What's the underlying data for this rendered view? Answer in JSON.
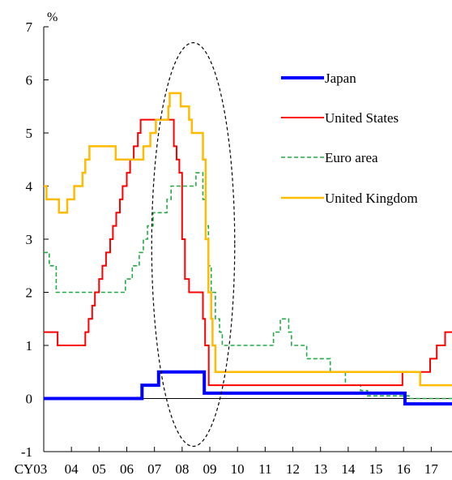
{
  "chart_data": {
    "type": "line",
    "y_unit_label": "%",
    "ylim": [
      -1,
      7
    ],
    "y_ticks": [
      -1,
      0,
      1,
      2,
      3,
      4,
      5,
      6,
      7
    ],
    "xlim": [
      2003.0,
      2017.75
    ],
    "x_ticks": [
      {
        "value": 2003,
        "label": "CY03"
      },
      {
        "value": 2004,
        "label": "04"
      },
      {
        "value": 2005,
        "label": "05"
      },
      {
        "value": 2006,
        "label": "06"
      },
      {
        "value": 2007,
        "label": "07"
      },
      {
        "value": 2008,
        "label": "08"
      },
      {
        "value": 2009,
        "label": "09"
      },
      {
        "value": 2010,
        "label": "10"
      },
      {
        "value": 2011,
        "label": "11"
      },
      {
        "value": 2012,
        "label": "12"
      },
      {
        "value": 2013,
        "label": "13"
      },
      {
        "value": 2014,
        "label": "14"
      },
      {
        "value": 2015,
        "label": "15"
      },
      {
        "value": 2016,
        "label": "16"
      },
      {
        "value": 2017,
        "label": "17"
      }
    ],
    "grid": false,
    "legend_position": "upper-right",
    "highlight_ellipse": {
      "x_center": 2008.4,
      "y_center": 2.9,
      "x_radius": 1.5,
      "y_radius": 3.8
    },
    "series": [
      {
        "name": "Japan",
        "color": "#0000ff",
        "style": "solid",
        "width": 4,
        "step": true,
        "points": [
          [
            2003.0,
            0.0
          ],
          [
            2006.55,
            0.25
          ],
          [
            2007.15,
            0.5
          ],
          [
            2008.8,
            0.1
          ],
          [
            2016.05,
            -0.1
          ],
          [
            2017.75,
            -0.1
          ]
        ]
      },
      {
        "name": "United States",
        "color": "#ff0000",
        "style": "solid",
        "width": 2,
        "step": true,
        "points": [
          [
            2003.0,
            1.25
          ],
          [
            2003.5,
            1.0
          ],
          [
            2004.5,
            1.25
          ],
          [
            2004.62,
            1.5
          ],
          [
            2004.75,
            1.75
          ],
          [
            2004.85,
            2.0
          ],
          [
            2005.0,
            2.25
          ],
          [
            2005.12,
            2.5
          ],
          [
            2005.25,
            2.75
          ],
          [
            2005.4,
            3.0
          ],
          [
            2005.5,
            3.25
          ],
          [
            2005.62,
            3.5
          ],
          [
            2005.75,
            3.75
          ],
          [
            2005.85,
            4.0
          ],
          [
            2006.0,
            4.25
          ],
          [
            2006.12,
            4.5
          ],
          [
            2006.25,
            4.75
          ],
          [
            2006.4,
            5.0
          ],
          [
            2006.5,
            5.25
          ],
          [
            2007.7,
            4.75
          ],
          [
            2007.8,
            4.5
          ],
          [
            2007.9,
            4.25
          ],
          [
            2008.0,
            3.0
          ],
          [
            2008.1,
            2.25
          ],
          [
            2008.25,
            2.0
          ],
          [
            2008.75,
            1.5
          ],
          [
            2008.83,
            1.0
          ],
          [
            2008.96,
            0.25
          ],
          [
            2015.96,
            0.5
          ],
          [
            2016.96,
            0.75
          ],
          [
            2017.2,
            1.0
          ],
          [
            2017.5,
            1.25
          ],
          [
            2017.75,
            1.25
          ]
        ]
      },
      {
        "name": "Euro area",
        "color": "#22aa44",
        "style": "dashed",
        "width": 1.6,
        "step": true,
        "points": [
          [
            2003.0,
            2.75
          ],
          [
            2003.2,
            2.5
          ],
          [
            2003.45,
            2.0
          ],
          [
            2005.95,
            2.25
          ],
          [
            2006.2,
            2.5
          ],
          [
            2006.45,
            2.75
          ],
          [
            2006.6,
            3.0
          ],
          [
            2006.75,
            3.25
          ],
          [
            2006.95,
            3.5
          ],
          [
            2007.45,
            3.75
          ],
          [
            2007.6,
            4.0
          ],
          [
            2008.5,
            4.25
          ],
          [
            2008.75,
            3.75
          ],
          [
            2008.85,
            3.25
          ],
          [
            2008.95,
            2.5
          ],
          [
            2009.05,
            2.0
          ],
          [
            2009.2,
            1.5
          ],
          [
            2009.35,
            1.25
          ],
          [
            2009.45,
            1.0
          ],
          [
            2011.3,
            1.25
          ],
          [
            2011.55,
            1.5
          ],
          [
            2011.85,
            1.25
          ],
          [
            2011.95,
            1.0
          ],
          [
            2012.5,
            0.75
          ],
          [
            2013.35,
            0.5
          ],
          [
            2013.9,
            0.25
          ],
          [
            2014.45,
            0.15
          ],
          [
            2014.7,
            0.05
          ],
          [
            2016.2,
            0.0
          ],
          [
            2017.75,
            0.0
          ]
        ]
      },
      {
        "name": "United Kingdom",
        "color": "#ffbb00",
        "style": "solid",
        "width": 2.5,
        "step": true,
        "points": [
          [
            2003.0,
            4.0
          ],
          [
            2003.1,
            3.75
          ],
          [
            2003.55,
            3.5
          ],
          [
            2003.85,
            3.75
          ],
          [
            2004.1,
            4.0
          ],
          [
            2004.4,
            4.25
          ],
          [
            2004.5,
            4.5
          ],
          [
            2004.65,
            4.75
          ],
          [
            2005.6,
            4.5
          ],
          [
            2006.6,
            4.75
          ],
          [
            2006.85,
            5.0
          ],
          [
            2007.05,
            5.25
          ],
          [
            2007.5,
            5.5
          ],
          [
            2007.55,
            5.75
          ],
          [
            2007.95,
            5.5
          ],
          [
            2008.25,
            5.25
          ],
          [
            2008.35,
            5.0
          ],
          [
            2008.75,
            4.5
          ],
          [
            2008.85,
            3.0
          ],
          [
            2008.95,
            2.0
          ],
          [
            2009.05,
            1.5
          ],
          [
            2009.1,
            1.0
          ],
          [
            2009.2,
            0.5
          ],
          [
            2016.6,
            0.25
          ],
          [
            2017.75,
            0.25
          ]
        ]
      }
    ]
  }
}
